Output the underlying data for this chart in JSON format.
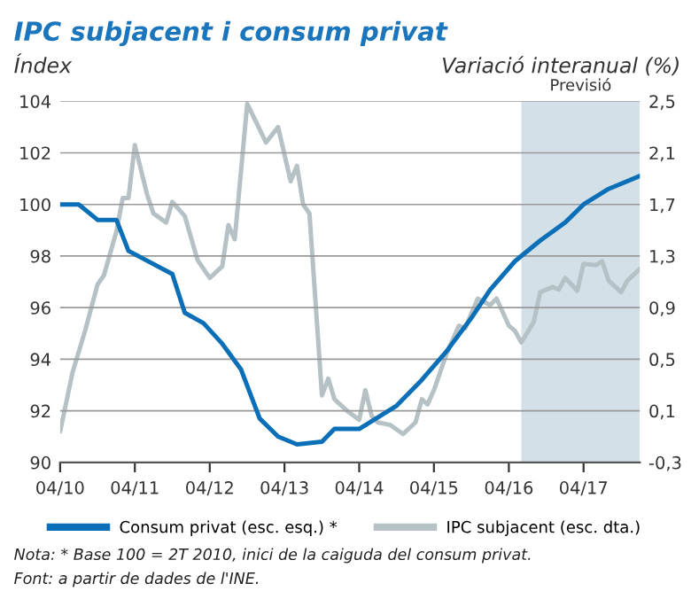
{
  "chart_data": {
    "type": "line",
    "title": "IPC subjacent i consum privat",
    "ylabel": "Índex",
    "y2label": "Variació interanual (%)",
    "series": [
      {
        "name": "Consum privat (esc. esq.) *",
        "color": "#0b6fb8",
        "axis": "y",
        "x": [
          "2010-04",
          "2010-07",
          "2010-10",
          "2011-01",
          "2011-03",
          "2011-10",
          "2011-12",
          "2012-03",
          "2012-06",
          "2012-09",
          "2012-12",
          "2013-03",
          "2013-06",
          "2013-10",
          "2013-12",
          "2014-04",
          "2014-06",
          "2014-10",
          "2015-02",
          "2015-06",
          "2015-10",
          "2016-01",
          "2016-05",
          "2016-09",
          "2017-01",
          "2017-04",
          "2017-08",
          "2018-01"
        ],
        "values": [
          100,
          100,
          99.4,
          99.4,
          98.2,
          97.3,
          95.8,
          95.4,
          94.6,
          93.6,
          91.7,
          91.0,
          90.7,
          90.8,
          91.3,
          91.3,
          91.6,
          92.2,
          93.2,
          94.3,
          95.6,
          96.7,
          97.8,
          98.6,
          99.3,
          100.0,
          100.6,
          101.1
        ]
      },
      {
        "name": "IPC subjacent (esc. dta.)",
        "color": "#b5c1c5",
        "axis": "y2",
        "x": [
          "2010-04",
          "2010-06",
          "2010-08",
          "2010-10",
          "2010-11",
          "2011-01",
          "2011-02",
          "2011-03",
          "2011-04",
          "2011-06",
          "2011-07",
          "2011-09",
          "2011-10",
          "2011-12",
          "2012-02",
          "2012-04",
          "2012-06",
          "2012-07",
          "2012-08",
          "2012-10",
          "2013-01",
          "2013-03",
          "2013-05",
          "2013-06",
          "2013-07",
          "2013-08",
          "2013-10",
          "2013-11",
          "2013-12",
          "2014-02",
          "2014-04",
          "2014-05",
          "2014-06",
          "2014-07",
          "2014-09",
          "2014-11",
          "2015-01",
          "2015-02",
          "2015-03",
          "2015-04",
          "2015-06",
          "2015-08",
          "2015-09",
          "2015-11",
          "2016-01",
          "2016-02",
          "2016-04",
          "2016-05",
          "2016-06",
          "2016-08",
          "2016-09",
          "2016-11",
          "2016-12",
          "2017-01",
          "2017-02",
          "2017-03",
          "2017-04",
          "2017-06",
          "2017-07",
          "2017-08",
          "2017-10",
          "2017-11",
          "2018-01"
        ],
        "values": [
          -0.06,
          0.4,
          0.72,
          1.08,
          1.15,
          1.49,
          1.75,
          1.75,
          2.16,
          1.77,
          1.63,
          1.56,
          1.72,
          1.61,
          1.27,
          1.13,
          1.22,
          1.54,
          1.43,
          2.48,
          2.18,
          2.3,
          1.88,
          2.0,
          1.7,
          1.63,
          0.22,
          0.35,
          0.19,
          0.1,
          0.03,
          0.26,
          0.06,
          0.01,
          -0.01,
          -0.08,
          0.01,
          0.19,
          0.15,
          0.26,
          0.54,
          0.76,
          0.74,
          0.97,
          0.92,
          0.97,
          0.76,
          0.72,
          0.63,
          0.79,
          1.02,
          1.06,
          1.04,
          1.13,
          1.08,
          1.03,
          1.24,
          1.23,
          1.26,
          1.11,
          1.02,
          1.11,
          1.2
        ]
      }
    ],
    "xlim": [
      "2010-04",
      "2018-01"
    ],
    "xticks": [
      {
        "value": "2010-04",
        "label": "04/10"
      },
      {
        "value": "2011-04",
        "label": "04/11"
      },
      {
        "value": "2012-04",
        "label": "04/12"
      },
      {
        "value": "2013-04",
        "label": "04/13"
      },
      {
        "value": "2014-04",
        "label": "04/14"
      },
      {
        "value": "2015-04",
        "label": "04/15"
      },
      {
        "value": "2016-04",
        "label": "04/16"
      },
      {
        "value": "2017-04",
        "label": "04/17"
      }
    ],
    "ylim": [
      90,
      104
    ],
    "yticks": [
      90,
      92,
      94,
      96,
      98,
      100,
      102,
      104
    ],
    "y2lim": [
      -0.3,
      2.5
    ],
    "y2ticks": [
      {
        "value": -0.3,
        "label": "-0,3"
      },
      {
        "value": 0.1,
        "label": "0,1"
      },
      {
        "value": 0.5,
        "label": "0,5"
      },
      {
        "value": 0.9,
        "label": "0,9"
      },
      {
        "value": 1.3,
        "label": "1,3"
      },
      {
        "value": 1.7,
        "label": "1,7"
      },
      {
        "value": 2.1,
        "label": "2,1"
      },
      {
        "value": 2.5,
        "label": "2,5"
      }
    ],
    "bands": [
      {
        "axis": "x",
        "from": "2016-06",
        "to": "2018-01",
        "label": "Previsió",
        "color": "#d3e0e8"
      }
    ],
    "grid": "y",
    "legend": "bottom",
    "marker": "none",
    "line_style": "solid",
    "annotations": [
      "Nota: * Base 100 = 2T 2010, inici de la caiguda del consum privat.",
      "Font: a partir de dades de l'INE."
    ]
  }
}
